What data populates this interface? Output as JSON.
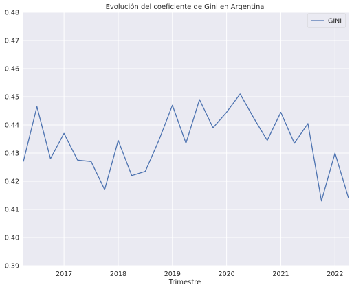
{
  "chart_data": {
    "type": "line",
    "title": "Evolución del coeficiente de Gini en Argentina",
    "xlabel": "Trimestre",
    "ylabel": "",
    "x": [
      "2016Q2",
      "2016Q3",
      "2016Q4",
      "2017Q1",
      "2017Q2",
      "2017Q3",
      "2017Q4",
      "2018Q1",
      "2018Q2",
      "2018Q3",
      "2018Q4",
      "2019Q1",
      "2019Q2",
      "2019Q3",
      "2019Q4",
      "2020Q1",
      "2020Q2",
      "2020Q3",
      "2020Q4",
      "2021Q1",
      "2021Q2",
      "2021Q3",
      "2021Q4",
      "2022Q1",
      "2022Q2"
    ],
    "xlim": [
      2016.25,
      2022.25
    ],
    "xticks": [
      {
        "value": 2017,
        "label": "2017"
      },
      {
        "value": 2018,
        "label": "2018"
      },
      {
        "value": 2019,
        "label": "2019"
      },
      {
        "value": 2020,
        "label": "2020"
      },
      {
        "value": 2021,
        "label": "2021"
      },
      {
        "value": 2022,
        "label": "2022"
      }
    ],
    "ylim": [
      0.39,
      0.48
    ],
    "yticks": [
      {
        "value": 0.39,
        "label": "0.39"
      },
      {
        "value": 0.4,
        "label": "0.40"
      },
      {
        "value": 0.41,
        "label": "0.41"
      },
      {
        "value": 0.42,
        "label": "0.42"
      },
      {
        "value": 0.43,
        "label": "0.43"
      },
      {
        "value": 0.44,
        "label": "0.44"
      },
      {
        "value": 0.45,
        "label": "0.45"
      },
      {
        "value": 0.46,
        "label": "0.46"
      },
      {
        "value": 0.47,
        "label": "0.47"
      },
      {
        "value": 0.48,
        "label": "0.48"
      }
    ],
    "series": [
      {
        "name": "GINI",
        "color": "#4c72b0",
        "values": [
          0.427,
          0.4465,
          0.428,
          0.437,
          0.4275,
          0.427,
          0.417,
          0.4345,
          0.422,
          0.4235,
          0.4345,
          0.447,
          0.4335,
          0.449,
          0.439,
          0.4445,
          0.451,
          0.4425,
          0.4345,
          0.4445,
          0.4335,
          0.4405,
          0.413,
          0.43,
          0.414
        ]
      }
    ],
    "grid": true,
    "legend_position": "top-right",
    "colors": {
      "plot_background": "#eaeaf2",
      "grid": "#ffffff",
      "text": "#262626"
    }
  }
}
